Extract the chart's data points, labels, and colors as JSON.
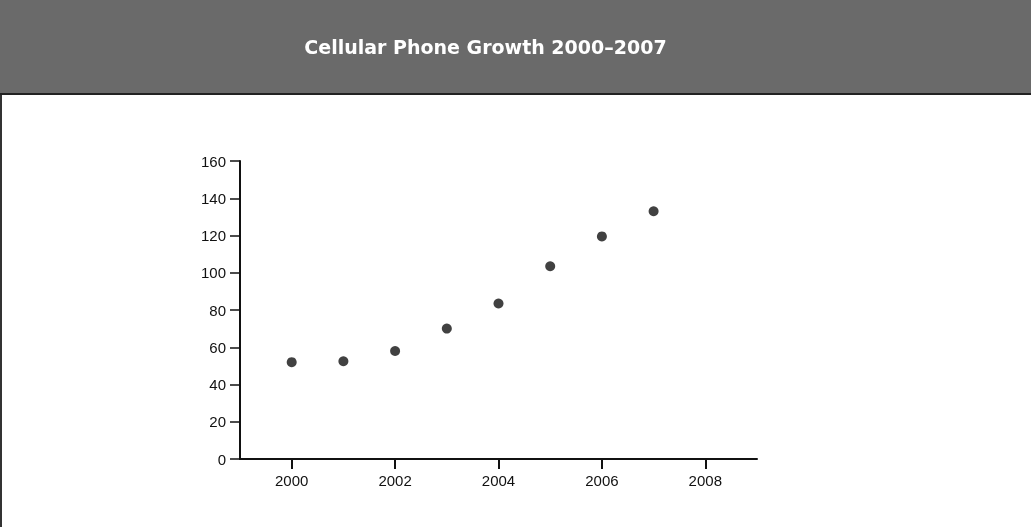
{
  "chart_data": {
    "type": "scatter",
    "title": "Cellular Phone Growth 2000–2007",
    "x": [
      2000,
      2001,
      2002,
      2003,
      2004,
      2005,
      2006,
      2007
    ],
    "values": [
      52,
      52.5,
      58,
      70,
      83.5,
      103.5,
      119.5,
      133
    ],
    "color": "#111111",
    "marker": "circle",
    "xlim": [
      1999,
      2009
    ],
    "xticks": [
      2000,
      2002,
      2004,
      2006,
      2008
    ],
    "ylim": [
      0,
      160
    ],
    "yticks": [
      0,
      20,
      40,
      60,
      80,
      100,
      120,
      140,
      160
    ],
    "grid": false
  }
}
